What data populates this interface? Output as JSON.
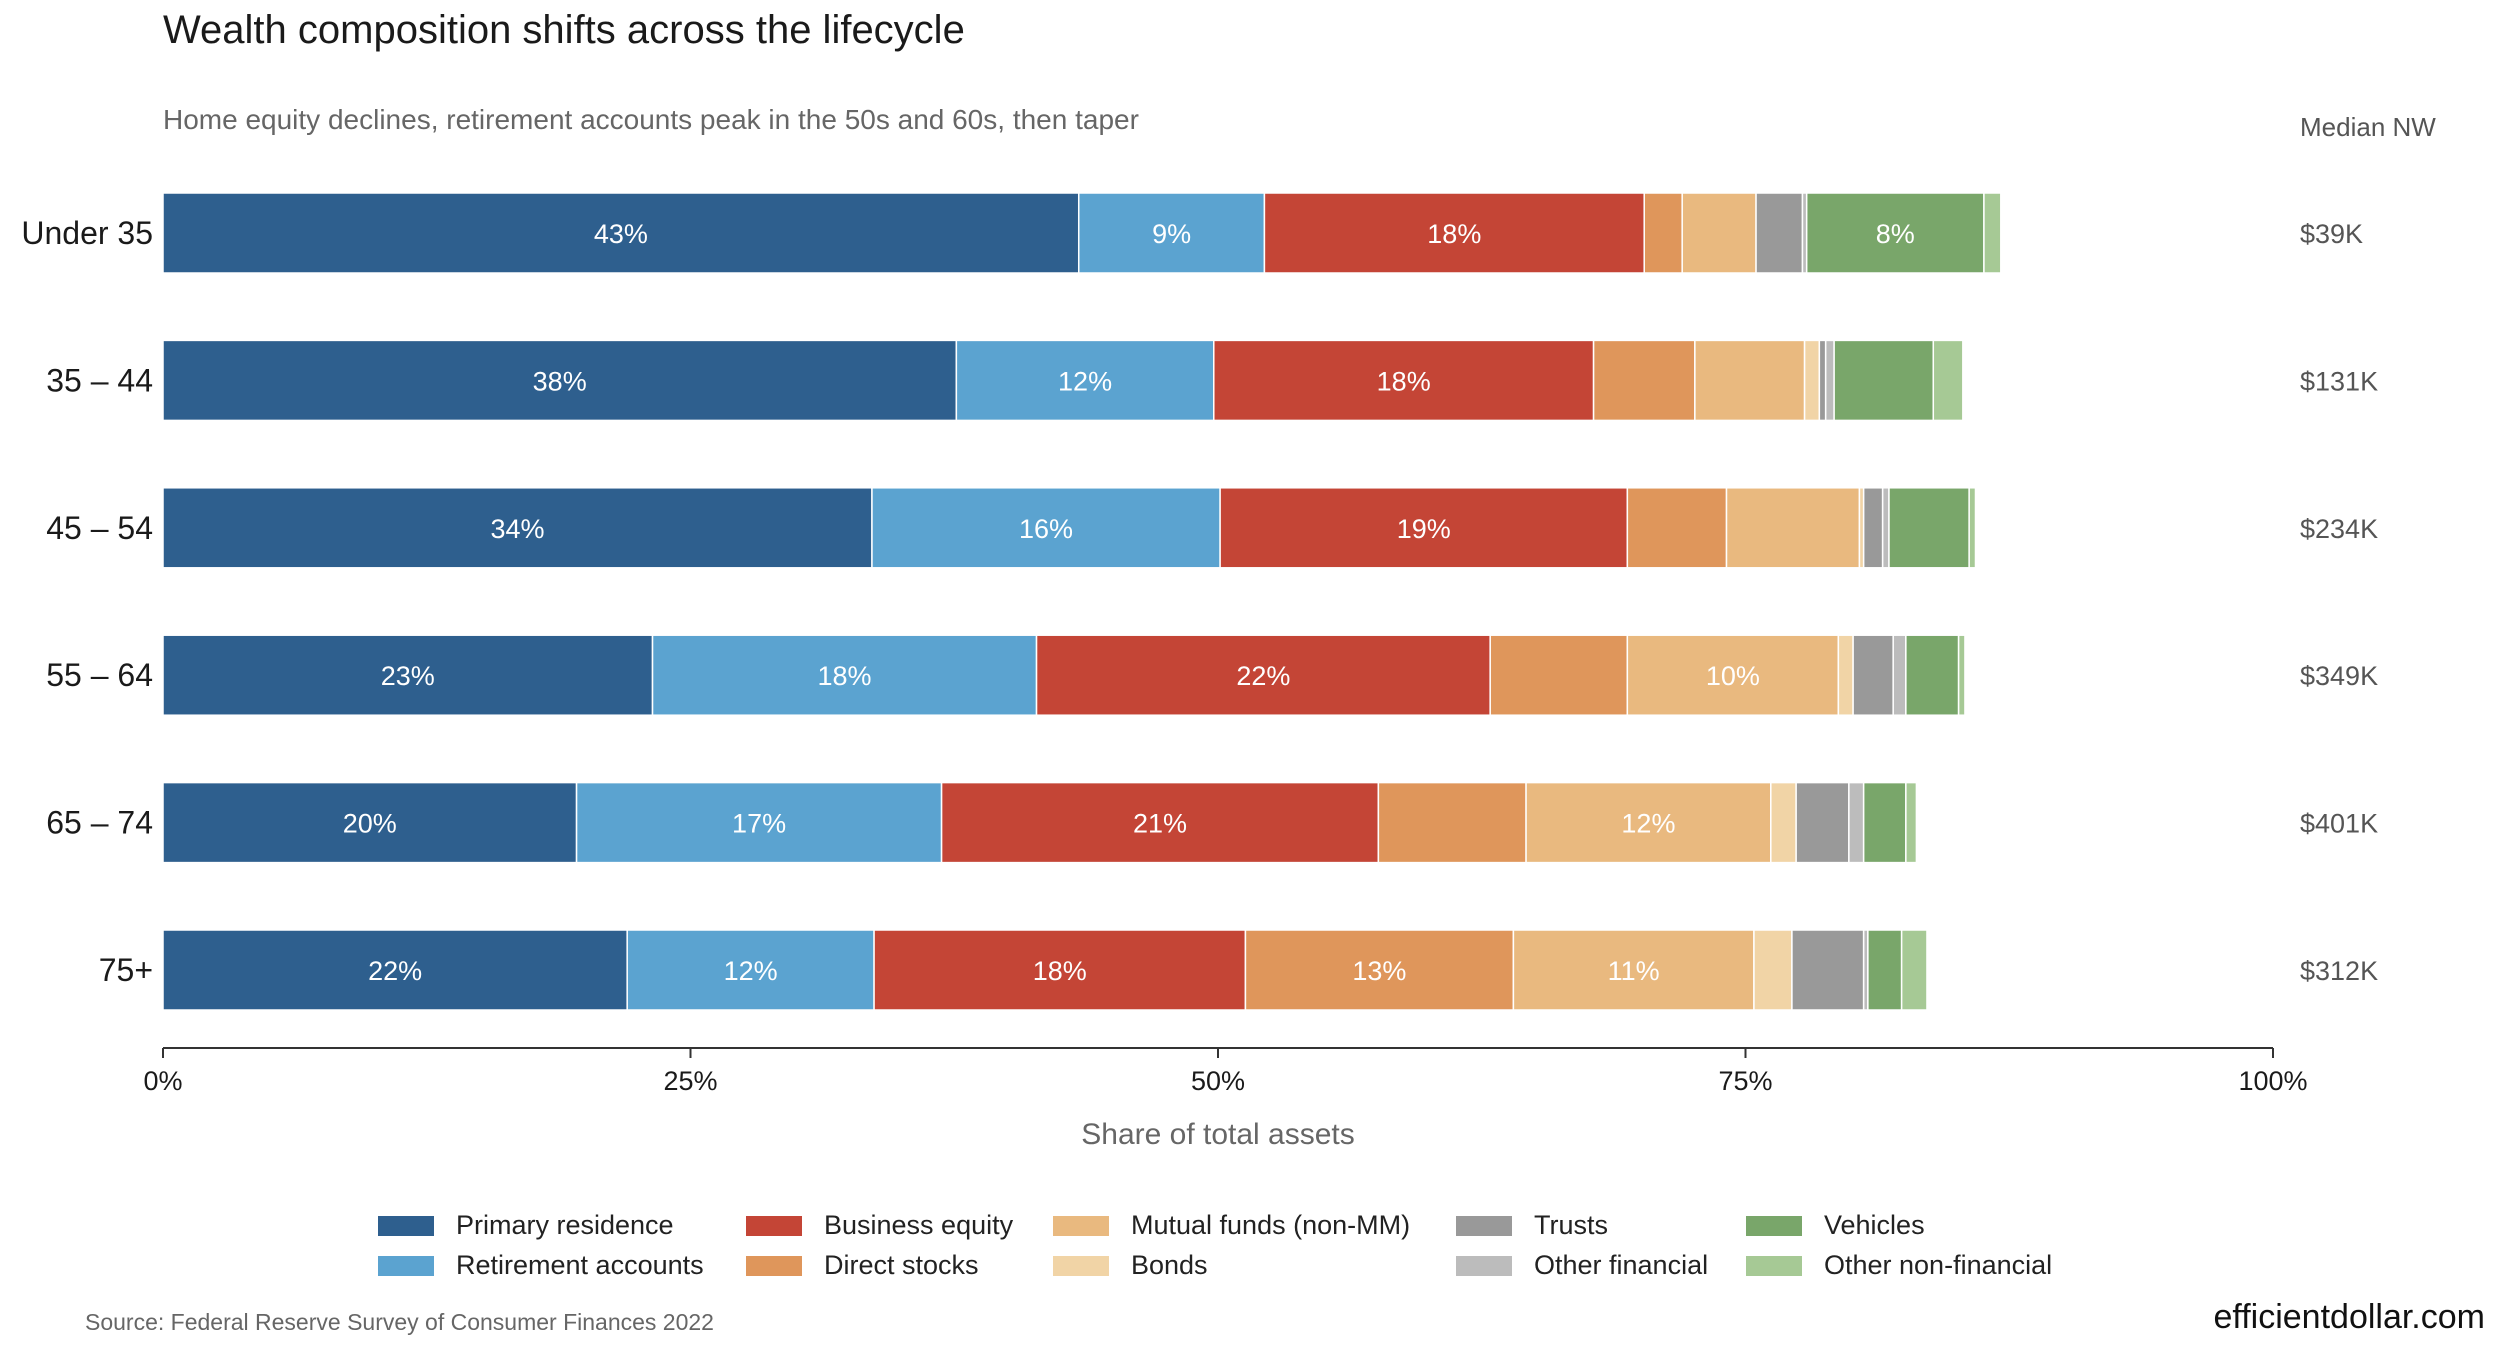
{
  "title": "Wealth composition shifts across the lifecycle",
  "subtitle": "Home equity declines, retirement accounts peak in the 50s and 60s, then taper",
  "median_header": "Median NW",
  "source": "Source: Federal Reserve Survey of Consumer Finances 2022",
  "brand": "efficientdollar.com",
  "colors": {
    "Primary residence": "#2e5f8e",
    "Retirement accounts": "#5ba3d0",
    "Business equity": "#c44536",
    "Direct stocks": "#df965b",
    "Mutual funds (non-MM)": "#e9b97f",
    "Bonds": "#f1d4a6",
    "Trusts": "#999999",
    "Other financial": "#bcbcbc",
    "Vehicles": "#79a66a",
    "Other non-financial": "#a6c995"
  },
  "legend": [
    "Primary residence",
    "Business equity",
    "Mutual funds (non-MM)",
    "Trusts",
    "Vehicles",
    "Retirement accounts",
    "Direct stocks",
    "Bonds",
    "Other financial",
    "Other non-financial"
  ],
  "chart_data": {
    "type": "bar",
    "orientation": "horizontal",
    "stacked": true,
    "title": "Wealth composition shifts across the lifecycle",
    "subtitle": "Home equity declines, retirement accounts peak in the 50s and 60s, then taper",
    "xlabel": "Share of total assets",
    "ylabel": "",
    "xlim": [
      0,
      100
    ],
    "x_ticks": [
      "0%",
      "25%",
      "50%",
      "75%",
      "100%"
    ],
    "legend_position": "bottom",
    "grid": false,
    "categories": [
      "Under 35",
      "35 – 44",
      "45 – 54",
      "55 – 64",
      "65 – 74",
      "75+"
    ],
    "median_nw": [
      "$39K",
      "$131K",
      "$234K",
      "$349K",
      "$401K",
      "$312K"
    ],
    "series": [
      {
        "name": "Primary residence",
        "values": [
          43.4,
          37.6,
          33.6,
          23.2,
          19.6,
          22.0
        ]
      },
      {
        "name": "Retirement accounts",
        "values": [
          8.8,
          12.2,
          16.5,
          18.2,
          17.3,
          11.7
        ]
      },
      {
        "name": "Business equity",
        "values": [
          18.0,
          18.0,
          19.3,
          21.5,
          20.7,
          17.6
        ]
      },
      {
        "name": "Direct stocks",
        "values": [
          1.8,
          4.8,
          4.7,
          6.5,
          7.0,
          12.7
        ]
      },
      {
        "name": "Mutual funds (non-MM)",
        "values": [
          3.5,
          5.2,
          6.3,
          10.0,
          11.6,
          11.4
        ]
      },
      {
        "name": "Bonds",
        "values": [
          0.0,
          0.7,
          0.2,
          0.7,
          1.2,
          1.8
        ]
      },
      {
        "name": "Trusts",
        "values": [
          2.2,
          0.3,
          0.9,
          1.9,
          2.5,
          3.4
        ]
      },
      {
        "name": "Other financial",
        "values": [
          0.2,
          0.4,
          0.3,
          0.6,
          0.7,
          0.2
        ]
      },
      {
        "name": "Vehicles",
        "values": [
          8.4,
          4.7,
          3.8,
          2.5,
          2.0,
          1.6
        ]
      },
      {
        "name": "Other non-financial",
        "values": [
          0.8,
          1.4,
          0.3,
          0.3,
          0.5,
          1.2
        ]
      }
    ],
    "labels": [
      [
        "43%",
        "9%",
        "18%",
        "",
        "",
        "",
        "",
        "",
        "8%",
        ""
      ],
      [
        "38%",
        "12%",
        "18%",
        "",
        "",
        "",
        "",
        "",
        "",
        ""
      ],
      [
        "34%",
        "16%",
        "19%",
        "",
        "",
        "",
        "",
        "",
        "",
        ""
      ],
      [
        "23%",
        "18%",
        "22%",
        "",
        "10%",
        "",
        "",
        "",
        "",
        ""
      ],
      [
        "20%",
        "17%",
        "21%",
        "",
        "12%",
        "",
        "",
        "",
        "",
        ""
      ],
      [
        "22%",
        "12%",
        "18%",
        "13%",
        "11%",
        "",
        "",
        "",
        "",
        ""
      ]
    ]
  }
}
